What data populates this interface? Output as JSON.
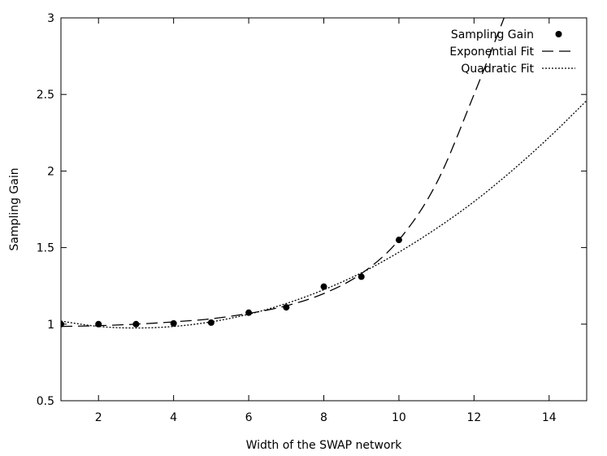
{
  "chart_data": {
    "type": "scatter",
    "xlabel": "Width of the SWAP network",
    "ylabel": "Sampling Gain",
    "xlim": [
      1,
      15
    ],
    "ylim": [
      0.5,
      3
    ],
    "x_ticks": [
      2,
      4,
      6,
      8,
      10,
      12,
      14
    ],
    "y_ticks": [
      0.5,
      1,
      1.5,
      2,
      2.5,
      3
    ],
    "x_tick_labels": [
      "2",
      "4",
      "6",
      "8",
      "10",
      "12",
      "14"
    ],
    "y_tick_labels": [
      "0.5",
      "1",
      "1.5",
      "2",
      "2.5",
      "3"
    ],
    "grid": false,
    "legend_position": "top-right",
    "series": [
      {
        "name": "Sampling Gain",
        "kind": "points",
        "marker": "filled-circle",
        "x": [
          1,
          2,
          3,
          4,
          5,
          6,
          7,
          8,
          9,
          10
        ],
        "y": [
          1.0,
          1.0,
          1.0,
          1.005,
          1.01,
          1.075,
          1.11,
          1.245,
          1.31,
          1.55
        ]
      },
      {
        "name": "Exponential Fit",
        "kind": "line",
        "dash": "long-dash",
        "x": [
          1,
          2,
          3,
          4,
          5,
          6,
          7,
          8,
          9,
          10,
          11,
          12,
          12.8
        ],
        "y": [
          0.985,
          0.99,
          1.0,
          1.015,
          1.035,
          1.07,
          1.12,
          1.2,
          1.33,
          1.55,
          1.92,
          2.5,
          3.0
        ]
      },
      {
        "name": "Quadratic Fit",
        "kind": "line",
        "dash": "dotted",
        "x": [
          1,
          2,
          3,
          4,
          5,
          6,
          7,
          8,
          9,
          10,
          11,
          12,
          13,
          14,
          15
        ],
        "y": [
          1.02,
          0.985,
          0.975,
          0.985,
          1.015,
          1.065,
          1.135,
          1.225,
          1.335,
          1.47,
          1.625,
          1.8,
          2.0,
          2.22,
          2.46
        ]
      }
    ]
  }
}
